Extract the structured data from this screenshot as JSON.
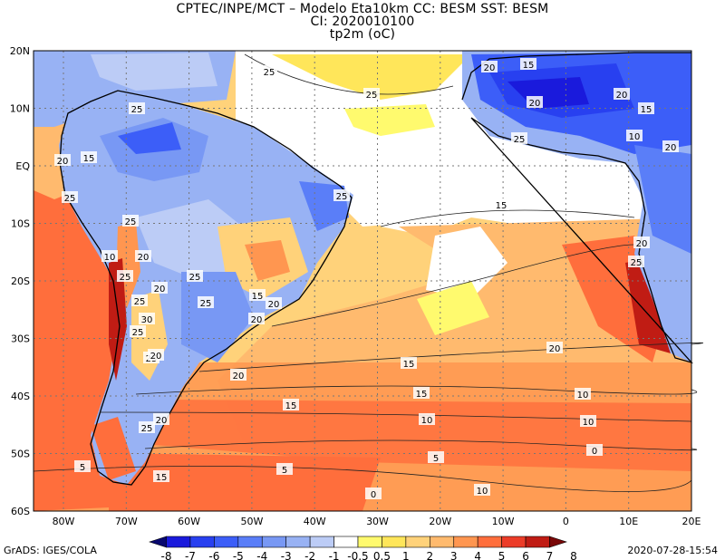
{
  "header": {
    "line1": "CPTEC/INPE/MCT –   Modelo Eta10km  CC: BESM  SST: BESM",
    "line2": "CI: 2020010100",
    "line3": "tp2m  (oC)"
  },
  "map": {
    "lat_labels": [
      "20N",
      "10N",
      "EQ",
      "10S",
      "20S",
      "30S",
      "40S",
      "50S",
      "60S"
    ],
    "lon_labels": [
      "80W",
      "70W",
      "60W",
      "50W",
      "40W",
      "30W",
      "20W",
      "10W",
      "0",
      "10E",
      "20E"
    ],
    "contour_labels": [
      "25",
      "25",
      "20",
      "15",
      "20",
      "20",
      "15",
      "10",
      "20",
      "25",
      "25",
      "15",
      "20",
      "25",
      "25",
      "10",
      "20",
      "25",
      "25",
      "30",
      "25",
      "25",
      "25",
      "20",
      "15",
      "20",
      "25",
      "25",
      "20",
      "20",
      "15",
      "15",
      "10",
      "10",
      "10",
      "5",
      "5",
      "5",
      "0",
      "0",
      "10",
      "15",
      "20",
      "25",
      "20",
      "15",
      "15",
      "20",
      "25",
      "20"
    ],
    "grid": true,
    "projection": "lat-lon"
  },
  "colorbar": {
    "values": [
      "-8",
      "-7",
      "-6",
      "-5",
      "-4",
      "-3",
      "-2",
      "-1",
      "-0.5",
      "0.5",
      "1",
      "2",
      "3",
      "4",
      "5",
      "6",
      "7",
      "8"
    ],
    "colors": [
      "#08086e",
      "#1a1adc",
      "#2840f0",
      "#3c5ef8",
      "#5a7ef8",
      "#7898f4",
      "#98b2f4",
      "#bcccf6",
      "#ffffff",
      "#fffa6e",
      "#ffe65a",
      "#ffd27a",
      "#ffba6e",
      "#ff9650",
      "#ff6e3c",
      "#ec3c28",
      "#c01c14",
      "#7a0808"
    ]
  },
  "footer": {
    "left": "GrADS: IGES/COLA",
    "right": "2020-07-28-15:54"
  }
}
